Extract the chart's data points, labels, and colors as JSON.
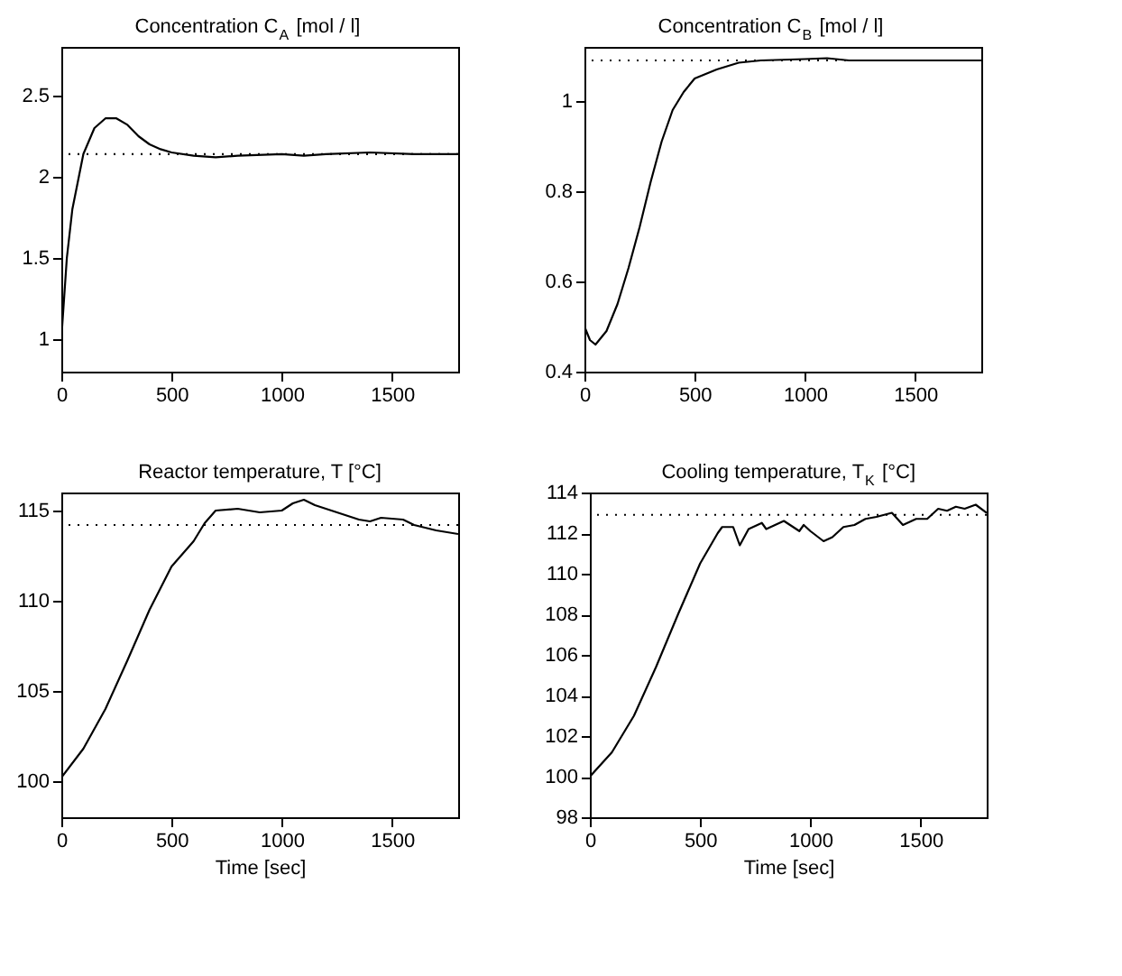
{
  "chart_data": [
    {
      "type": "line",
      "title": "Concentration C$_{A}$ [mol / l]",
      "x": [
        0,
        25,
        50,
        100,
        150,
        200,
        250,
        300,
        350,
        400,
        450,
        500,
        600,
        700,
        800,
        1000,
        1100,
        1200,
        1400,
        1600,
        1800
      ],
      "series": [
        {
          "color": "#000000",
          "values": [
            1.0,
            1.5,
            1.8,
            2.14,
            2.3,
            2.36,
            2.36,
            2.32,
            2.25,
            2.2,
            2.17,
            2.15,
            2.13,
            2.12,
            2.13,
            2.14,
            2.13,
            2.14,
            2.15,
            2.14,
            2.14
          ]
        }
      ],
      "xlim": [
        0,
        1800
      ],
      "xticks": [
        0,
        500,
        1000,
        1500
      ],
      "ylim": [
        0.8,
        2.8
      ],
      "yticks": [
        1,
        1.5,
        2,
        2.5
      ],
      "grid": false,
      "legend": false,
      "line_style": "solid",
      "ref_lines": [
        {
          "axis": "y",
          "value": 2.14,
          "color": "#000000",
          "line_style": "dotted"
        }
      ]
    },
    {
      "type": "line",
      "title": "Concentration C$_{B}$ [mol / l]",
      "x": [
        0,
        25,
        50,
        100,
        150,
        200,
        250,
        300,
        350,
        400,
        450,
        500,
        600,
        700,
        800,
        1000,
        1100,
        1200,
        1800
      ],
      "series": [
        {
          "color": "#000000",
          "values": [
            0.5,
            0.47,
            0.46,
            0.49,
            0.55,
            0.63,
            0.72,
            0.82,
            0.91,
            0.98,
            1.02,
            1.05,
            1.07,
            1.085,
            1.09,
            1.093,
            1.095,
            1.09,
            1.09
          ]
        }
      ],
      "xlim": [
        0,
        1800
      ],
      "xticks": [
        0,
        500,
        1000,
        1500
      ],
      "ylim": [
        0.4,
        1.12
      ],
      "yticks": [
        0.4,
        0.6,
        0.8,
        1
      ],
      "grid": false,
      "legend": false,
      "line_style": "solid",
      "ref_lines": [
        {
          "axis": "y",
          "value": 1.09,
          "color": "#000000",
          "line_style": "dotted"
        }
      ]
    },
    {
      "type": "line",
      "title": "Reactor temperature, T [°C]",
      "xlabel": "Time [sec]",
      "x": [
        0,
        100,
        200,
        300,
        400,
        500,
        600,
        650,
        700,
        800,
        900,
        1000,
        1050,
        1100,
        1150,
        1250,
        1350,
        1400,
        1450,
        1550,
        1600,
        1700,
        1800
      ],
      "series": [
        {
          "color": "#000000",
          "values": [
            100.2,
            101.8,
            104,
            106.7,
            109.5,
            111.9,
            113.3,
            114.3,
            115,
            115.1,
            114.9,
            115.0,
            115.4,
            115.6,
            115.3,
            114.9,
            114.5,
            114.4,
            114.6,
            114.5,
            114.2,
            113.9,
            113.7
          ]
        }
      ],
      "xlim": [
        0,
        1800
      ],
      "xticks": [
        0,
        500,
        1000,
        1500
      ],
      "ylim": [
        98,
        116
      ],
      "yticks": [
        100,
        105,
        110,
        115
      ],
      "grid": false,
      "legend": false,
      "line_style": "solid",
      "ref_lines": [
        {
          "axis": "y",
          "value": 114.2,
          "color": "#000000",
          "line_style": "dotted"
        }
      ]
    },
    {
      "type": "line",
      "title": "Cooling temperature, T$_{K}$ [°C]",
      "xlabel": "Time [sec]",
      "x": [
        0,
        100,
        200,
        300,
        400,
        500,
        580,
        600,
        650,
        680,
        720,
        780,
        800,
        880,
        950,
        970,
        1000,
        1060,
        1100,
        1150,
        1200,
        1250,
        1300,
        1370,
        1420,
        1480,
        1530,
        1580,
        1620,
        1660,
        1700,
        1750,
        1800
      ],
      "series": [
        {
          "color": "#000000",
          "values": [
            100,
            101.2,
            103,
            105.4,
            108,
            110.5,
            112,
            112.3,
            112.3,
            111.4,
            112.2,
            112.5,
            112.2,
            112.6,
            112.1,
            112.4,
            112.1,
            111.6,
            111.8,
            112.3,
            112.4,
            112.7,
            112.8,
            113,
            112.4,
            112.7,
            112.7,
            113.2,
            113.1,
            113.3,
            113.2,
            113.4,
            113.0
          ]
        }
      ],
      "xlim": [
        0,
        1800
      ],
      "xticks": [
        0,
        500,
        1000,
        1500
      ],
      "ylim": [
        98,
        114
      ],
      "yticks": [
        98,
        100,
        102,
        104,
        106,
        108,
        110,
        112,
        114
      ],
      "grid": false,
      "legend": false,
      "line_style": "solid",
      "ref_lines": [
        {
          "axis": "y",
          "value": 112.9,
          "color": "#000000",
          "line_style": "dotted"
        }
      ]
    }
  ]
}
